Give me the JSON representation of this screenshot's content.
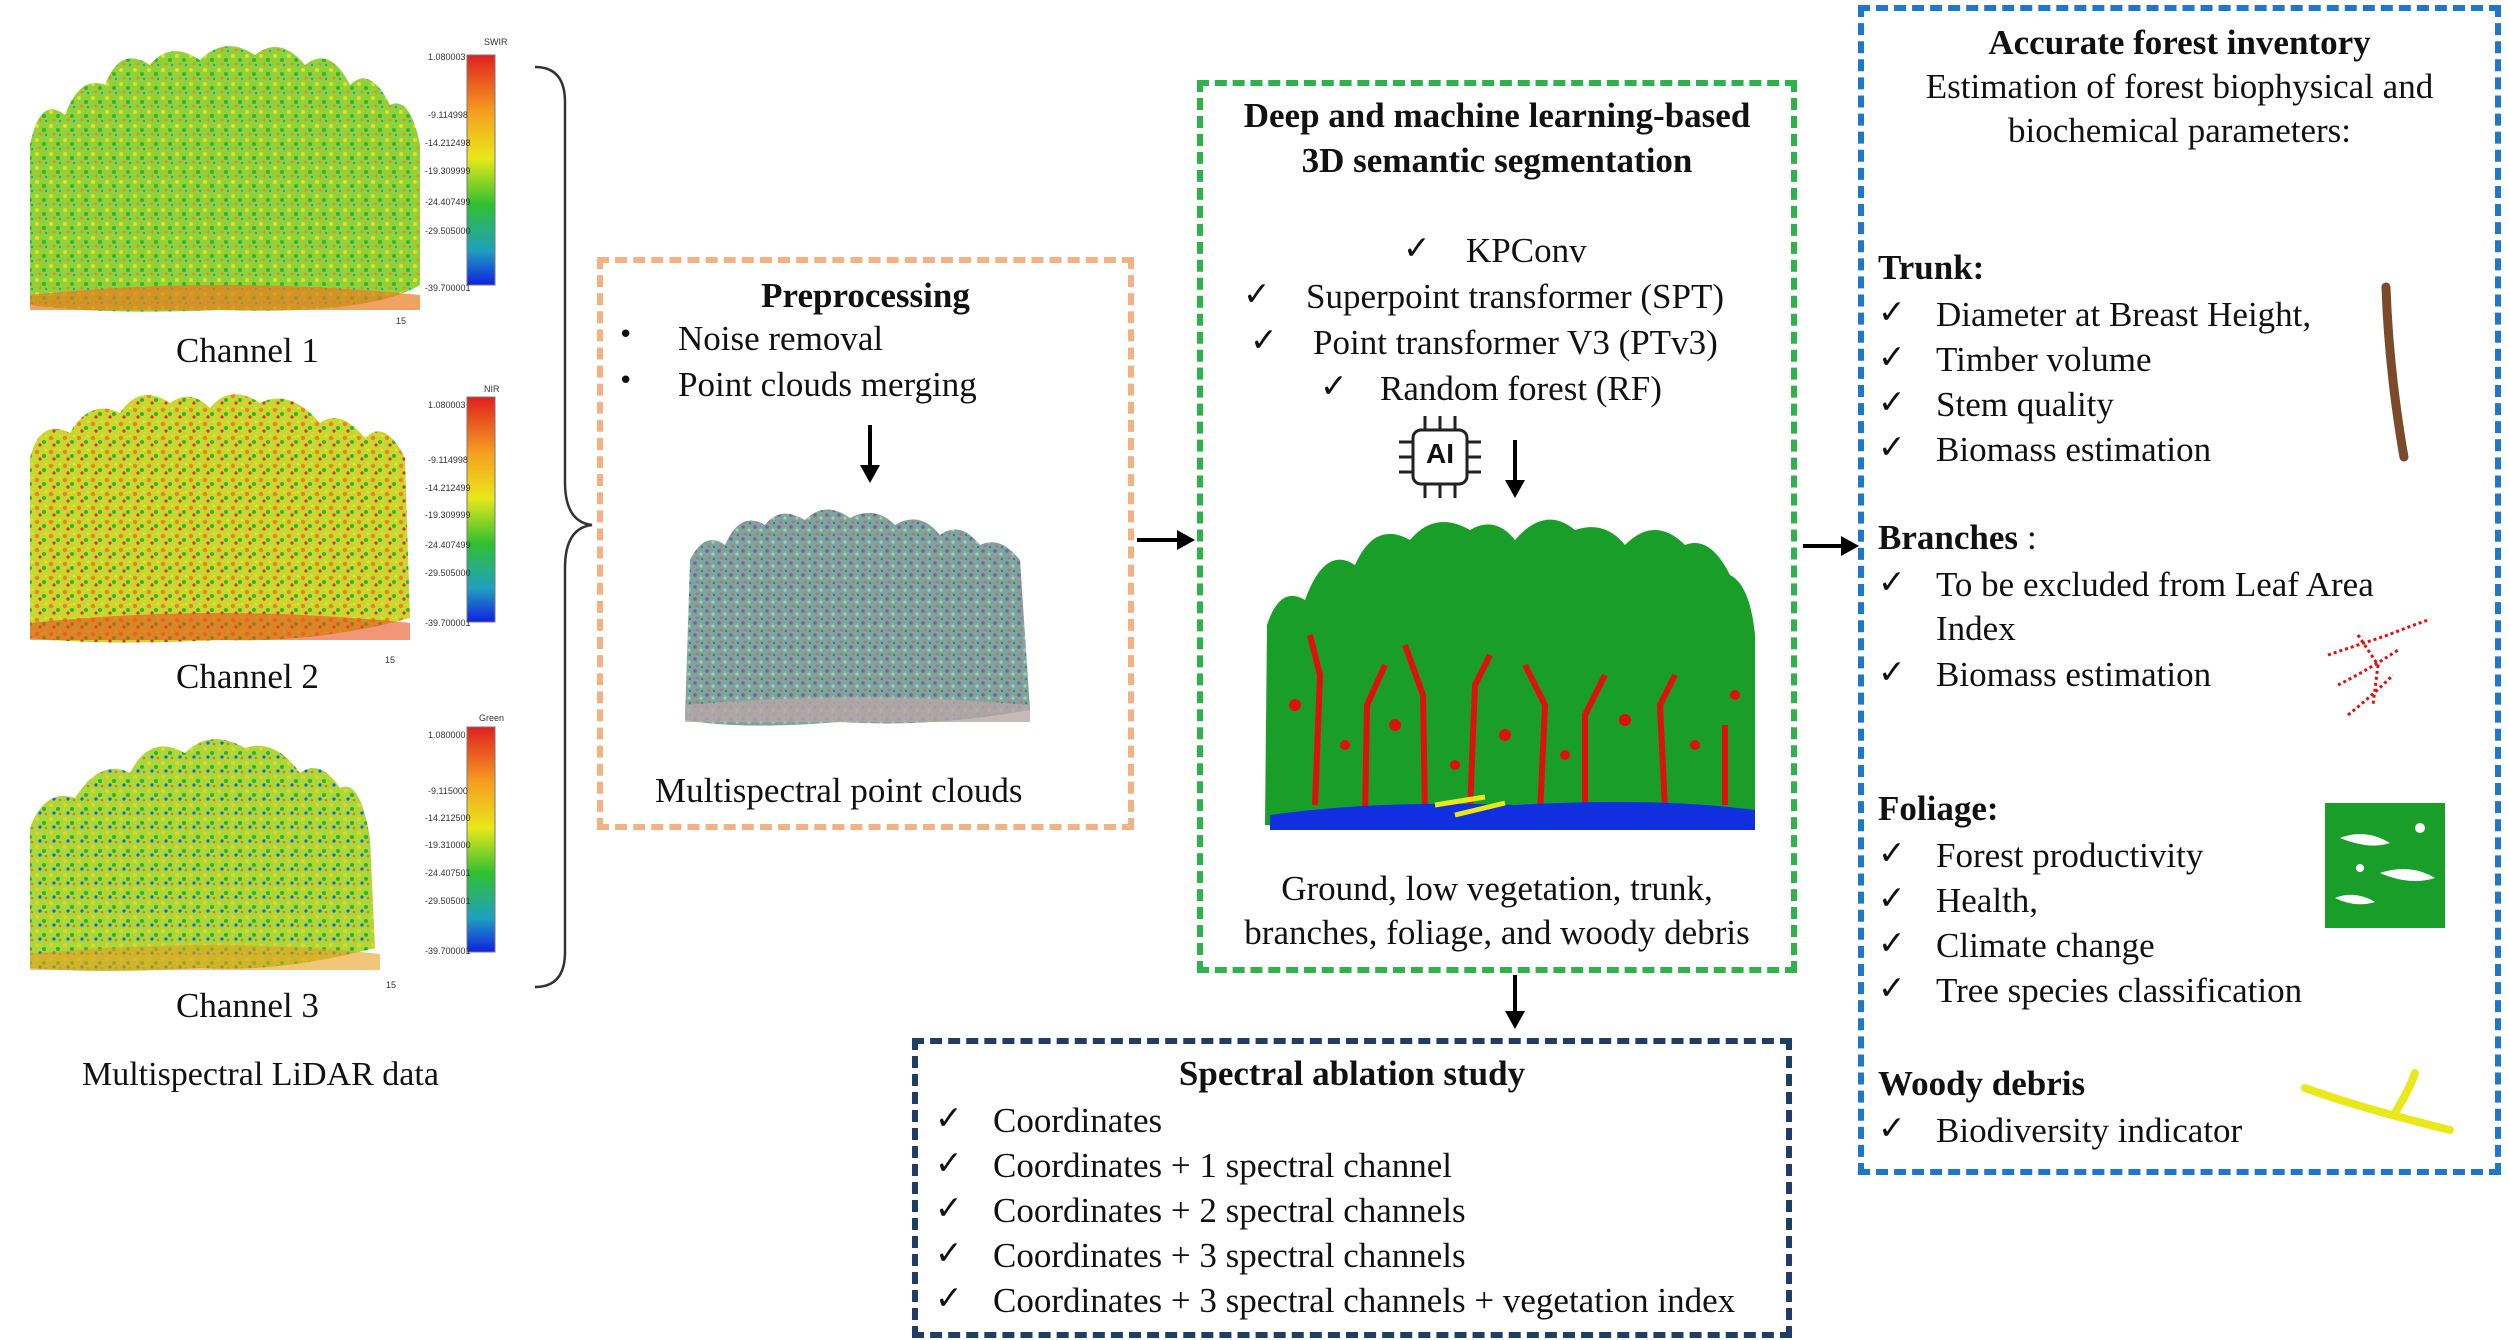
{
  "colors": {
    "preprocess_border": "#f4b183",
    "segmentation_border": "#2db34a",
    "ablation_border": "#1f3d66",
    "inventory_border": "#1f77c9",
    "foliage_green": "#1a9e2a",
    "trunk_red": "#e01010",
    "ground_blue": "#1030e0",
    "debris_yellow": "#e8e81a",
    "trunk_brown": "#7a4a2a"
  },
  "lidar": {
    "channels": [
      {
        "label": "Channel 1",
        "scalar_name": "SWIR",
        "ticks": [
          "1.080003",
          "-9.114998",
          "-14.212498",
          "-19.309999",
          "-24.407499",
          "-29.505000",
          "-39.700001"
        ],
        "scale_number": "15"
      },
      {
        "label": "Channel 2",
        "scalar_name": "NIR",
        "ticks": [
          "1.080003",
          "-9.114998",
          "-14.212499",
          "-19.309999",
          "-24.407499",
          "-29.505000",
          "-39.700001"
        ],
        "scale_number": "15"
      },
      {
        "label": "Channel 3",
        "scalar_name": "Green",
        "ticks": [
          "1.080000",
          "-9.115000",
          "-14.212500",
          "-19.310000",
          "-24.407501",
          "-29.505001",
          "-39.700001"
        ],
        "scale_number": "15"
      }
    ],
    "caption": "Multispectral LiDAR data"
  },
  "preprocessing": {
    "title": "Preprocessing",
    "bullets": [
      "Noise removal",
      "Point clouds merging"
    ],
    "caption": "Multispectral point clouds"
  },
  "segmentation": {
    "title_line1": "Deep and machine learning-based",
    "title_line2": "3D semantic segmentation",
    "methods": [
      "KPConv",
      "Superpoint transformer (SPT)",
      "Point transformer V3 (PTv3)",
      "Random forest (RF)"
    ],
    "ai_icon_label": "AI",
    "caption_line1": "Ground, low vegetation, trunk,",
    "caption_line2": "branches, foliage, and woody debris"
  },
  "ablation": {
    "title": "Spectral ablation study",
    "items": [
      "Coordinates",
      "Coordinates + 1 spectral channel",
      "Coordinates + 2 spectral channels",
      "Coordinates + 3 spectral channels",
      "Coordinates + 3 spectral channels + vegetation index"
    ]
  },
  "inventory": {
    "title": "Accurate forest inventory",
    "subtitle_line1": "Estimation of forest biophysical and",
    "subtitle_line2": "biochemical parameters:",
    "trunk": {
      "heading": "Trunk:",
      "items": [
        "Diameter at Breast Height,",
        "Timber volume",
        "Stem quality",
        "Biomass estimation"
      ]
    },
    "branches": {
      "heading": "Branches",
      "heading_suffix": ":",
      "items_line1": "To be excluded from Leaf Area",
      "items_line1_cont": "Index",
      "items_line2": "Biomass estimation"
    },
    "foliage": {
      "heading": "Foliage:",
      "items": [
        "Forest productivity",
        "Health,",
        "Climate change",
        "Tree species classification"
      ]
    },
    "woody": {
      "heading": "Woody debris",
      "items": [
        "Biodiversity indicator"
      ]
    }
  },
  "check_symbol": "✓",
  "bullet_symbol": "•"
}
